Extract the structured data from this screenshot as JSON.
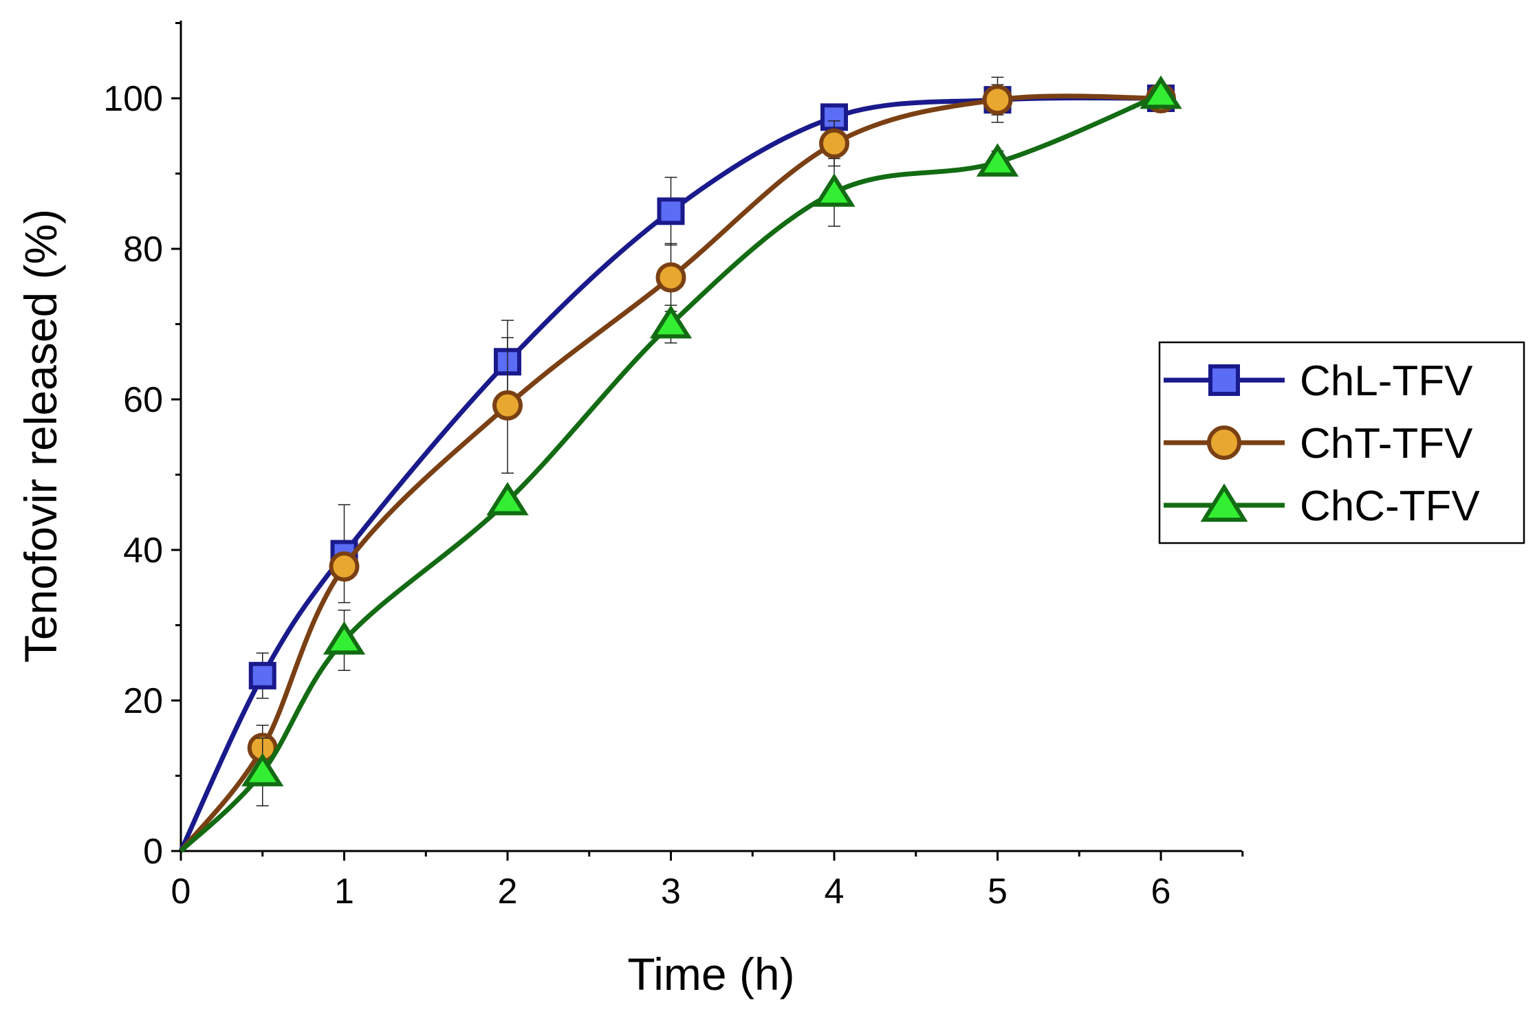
{
  "chart_data": {
    "type": "line",
    "title": "",
    "xlabel": "Time (h)",
    "ylabel": "Tenofovir released (%)",
    "xlim": [
      0,
      6.5
    ],
    "ylim": [
      0,
      110
    ],
    "xticks": [
      "0",
      "1",
      "2",
      "3",
      "4",
      "5",
      "6"
    ],
    "yticks": [
      "0",
      "20",
      "40",
      "60",
      "80",
      "100"
    ],
    "grid": false,
    "legend_position": "right",
    "series": [
      {
        "name": "ChL-TFV",
        "marker": "square",
        "line_color": "#1a1a8c",
        "marker_fill": "#5b6cf5",
        "marker_edge": "#1a1a8c",
        "x": [
          0,
          0.5,
          1,
          2,
          3,
          4,
          5,
          6
        ],
        "y": [
          0,
          23.3,
          39.5,
          65,
          85,
          97.5,
          99.8,
          100
        ],
        "err": [
          0,
          3,
          6.5,
          5.5,
          4.5,
          1.5,
          3,
          0
        ]
      },
      {
        "name": "ChT-TFV",
        "marker": "circle",
        "line_color": "#7a4014",
        "marker_fill": "#e8a72e",
        "marker_edge": "#7a4014",
        "x": [
          0,
          0.5,
          1,
          2,
          3,
          4,
          5,
          6
        ],
        "y": [
          0,
          13.7,
          37.8,
          59.2,
          76.2,
          94,
          99.8,
          100
        ],
        "err": [
          0,
          3,
          1,
          9,
          4.5,
          3,
          2,
          0
        ]
      },
      {
        "name": "ChC-TFV",
        "marker": "triangle",
        "line_color": "#136b13",
        "marker_fill": "#33ee33",
        "marker_edge": "#136b13",
        "x": [
          0,
          0.5,
          1,
          2,
          3,
          4,
          5,
          6
        ],
        "y": [
          0,
          10.5,
          28,
          46.5,
          70,
          87.5,
          91.5,
          100.5
        ],
        "err": [
          0,
          4.5,
          4,
          1,
          2.5,
          4.5,
          1.5,
          0
        ]
      }
    ]
  }
}
